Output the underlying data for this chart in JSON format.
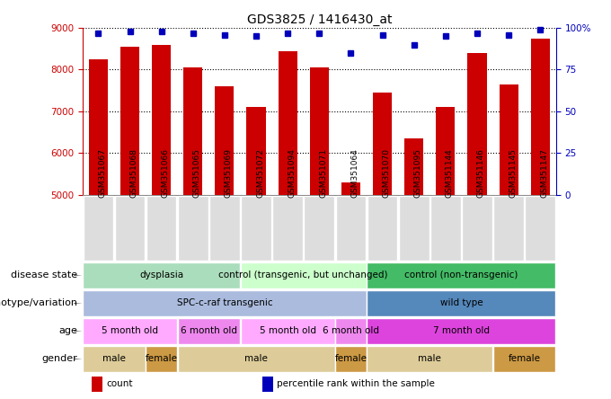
{
  "title": "GDS3825 / 1416430_at",
  "samples": [
    "GSM351067",
    "GSM351068",
    "GSM351066",
    "GSM351065",
    "GSM351069",
    "GSM351072",
    "GSM351094",
    "GSM351071",
    "GSM351064",
    "GSM351070",
    "GSM351095",
    "GSM351144",
    "GSM351146",
    "GSM351145",
    "GSM351147"
  ],
  "counts": [
    8250,
    8550,
    8600,
    8050,
    7600,
    7100,
    8450,
    8050,
    5300,
    7450,
    6350,
    7100,
    8400,
    7650,
    8750
  ],
  "percentile_ranks_pct": [
    97,
    98,
    98,
    97,
    96,
    95,
    97,
    97,
    85,
    96,
    90,
    95,
    97,
    96,
    99
  ],
  "bar_color": "#cc0000",
  "dot_color": "#0000bb",
  "ylim_left": [
    5000,
    9000
  ],
  "ylim_right": [
    0,
    100
  ],
  "yticks_left": [
    5000,
    6000,
    7000,
    8000,
    9000
  ],
  "yticks_right": [
    0,
    25,
    50,
    75,
    100
  ],
  "ytick_right_labels": [
    "0",
    "25",
    "50",
    "75",
    "100%"
  ],
  "sample_cell_color": "#dddddd",
  "annotation_rows": [
    {
      "label": "disease state",
      "segments": [
        {
          "text": "dysplasia",
          "start": 0,
          "end": 5,
          "color": "#aaddbb"
        },
        {
          "text": "control (transgenic, but unchanged)",
          "start": 5,
          "end": 9,
          "color": "#ccffcc"
        },
        {
          "text": "control (non-transgenic)",
          "start": 9,
          "end": 15,
          "color": "#44bb66"
        }
      ]
    },
    {
      "label": "genotype/variation",
      "segments": [
        {
          "text": "SPC-c-raf transgenic",
          "start": 0,
          "end": 9,
          "color": "#aabbdd"
        },
        {
          "text": "wild type",
          "start": 9,
          "end": 15,
          "color": "#5588bb"
        }
      ]
    },
    {
      "label": "age",
      "segments": [
        {
          "text": "5 month old",
          "start": 0,
          "end": 3,
          "color": "#ffaaff"
        },
        {
          "text": "6 month old",
          "start": 3,
          "end": 5,
          "color": "#ee88ee"
        },
        {
          "text": "5 month old",
          "start": 5,
          "end": 8,
          "color": "#ffaaff"
        },
        {
          "text": "6 month old",
          "start": 8,
          "end": 9,
          "color": "#ee88ee"
        },
        {
          "text": "7 month old",
          "start": 9,
          "end": 15,
          "color": "#dd44dd"
        }
      ]
    },
    {
      "label": "gender",
      "segments": [
        {
          "text": "male",
          "start": 0,
          "end": 2,
          "color": "#ddcc99"
        },
        {
          "text": "female",
          "start": 2,
          "end": 3,
          "color": "#cc9944"
        },
        {
          "text": "male",
          "start": 3,
          "end": 8,
          "color": "#ddcc99"
        },
        {
          "text": "female",
          "start": 8,
          "end": 9,
          "color": "#cc9944"
        },
        {
          "text": "male",
          "start": 9,
          "end": 13,
          "color": "#ddcc99"
        },
        {
          "text": "female",
          "start": 13,
          "end": 15,
          "color": "#cc9944"
        }
      ]
    }
  ],
  "legend": [
    {
      "color": "#cc0000",
      "label": "count"
    },
    {
      "color": "#0000bb",
      "label": "percentile rank within the sample"
    }
  ],
  "title_fontsize": 10,
  "tick_fontsize": 7.5,
  "sample_fontsize": 6.5,
  "annot_label_fontsize": 8,
  "annot_text_fontsize": 7.5,
  "legend_fontsize": 7.5
}
